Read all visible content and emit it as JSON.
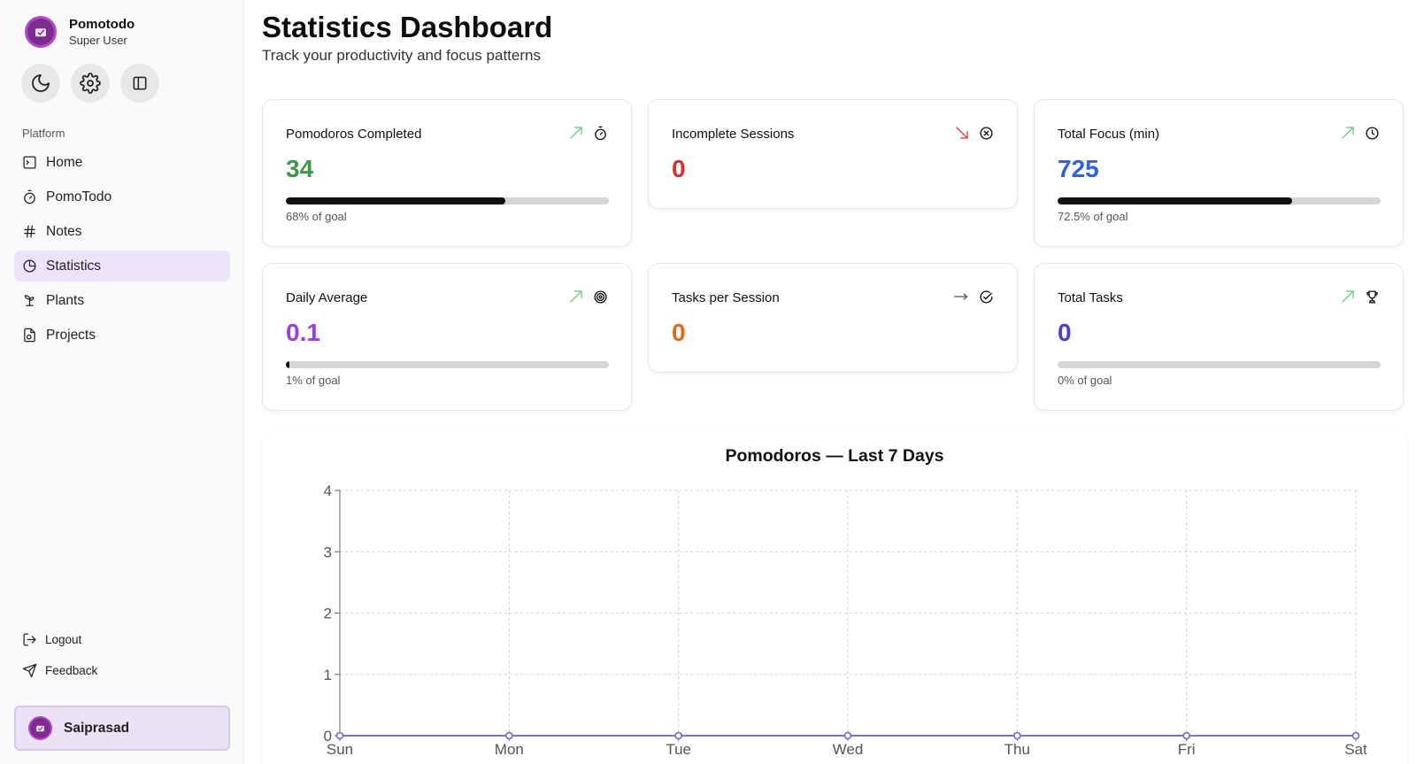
{
  "sidebar": {
    "brand_name": "Pomotodo",
    "brand_role": "Super User",
    "section_label": "Platform",
    "items": [
      {
        "label": "Home",
        "icon": "home-icon"
      },
      {
        "label": "PomoTodo",
        "icon": "timer-icon"
      },
      {
        "label": "Notes",
        "icon": "hash-icon"
      },
      {
        "label": "Statistics",
        "icon": "pie-chart-icon",
        "active": true
      },
      {
        "label": "Plants",
        "icon": "sprout-icon"
      },
      {
        "label": "Projects",
        "icon": "folder-icon"
      }
    ],
    "logout_label": "Logout",
    "feedback_label": "Feedback",
    "user_name": "Saiprasad"
  },
  "header": {
    "title": "Statistics Dashboard",
    "subtitle": "Track your productivity and focus patterns"
  },
  "cards": [
    {
      "label": "Pomodoros Completed",
      "value": "34",
      "color": "#3a9a47",
      "trend": "up",
      "icon": "timer-icon",
      "progress": 0.68,
      "goal_text": "68% of goal"
    },
    {
      "label": "Incomplete Sessions",
      "value": "0",
      "color": "#d62f2f",
      "trend": "down",
      "icon": "circle-x-icon"
    },
    {
      "label": "Total Focus (min)",
      "value": "725",
      "color": "#2f63d9",
      "trend": "up",
      "icon": "clock-icon",
      "progress": 0.725,
      "goal_text": "72.5% of goal"
    },
    {
      "label": "Daily Average",
      "value": "0.1",
      "color": "#9a3fd8",
      "trend": "up",
      "icon": "target-icon",
      "progress": 0.01,
      "goal_text": "1% of goal"
    },
    {
      "label": "Tasks per Session",
      "value": "0",
      "color": "#e0681d",
      "trend": "flat",
      "icon": "circle-check-icon"
    },
    {
      "label": "Total Tasks",
      "value": "0",
      "color": "#4a3fd0",
      "trend": "up",
      "icon": "trophy-icon",
      "progress": 0,
      "goal_text": "0% of goal"
    }
  ],
  "chart_title": "Pomodoros — Last 7 Days",
  "chart_data": {
    "type": "line",
    "title": "Pomodoros — Last 7 Days",
    "categories": [
      "Sun",
      "Mon",
      "Tue",
      "Wed",
      "Thu",
      "Fri",
      "Sat"
    ],
    "series": [
      {
        "values": [
          0,
          0,
          0,
          0,
          0,
          0,
          0
        ],
        "color": "#7b6fd6"
      }
    ],
    "yticks": [
      0,
      1,
      2,
      3,
      4
    ],
    "ylim": [
      0,
      4
    ],
    "grid": true
  }
}
